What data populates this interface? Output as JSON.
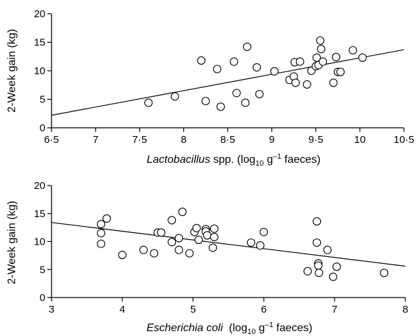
{
  "chart_data": [
    {
      "type": "scatter",
      "id": "top",
      "xlabel_italic": "Lactobacillus",
      "xlabel_mid": " spp. (log",
      "xlabel_sub": "10",
      "xlabel_end": " g",
      "xlabel_sup": "–1",
      "xlabel_tail": " faeces)",
      "ylabel": "2-Week gain (kg)",
      "xlim": [
        6.5,
        10.5
      ],
      "ylim": [
        0,
        20
      ],
      "xticks": [
        6.5,
        7,
        7.5,
        8,
        8.5,
        9,
        9.5,
        10,
        10.5
      ],
      "xtick_labels": [
        "6·5",
        "7",
        "7·5",
        "8",
        "8·5",
        "9",
        "9·5",
        "10",
        "10·5"
      ],
      "yticks": [
        0,
        5,
        10,
        15,
        20
      ],
      "ytick_labels": [
        "0",
        "5",
        "10",
        "15",
        "20"
      ],
      "points": [
        {
          "x": 7.6,
          "y": 4.4
        },
        {
          "x": 7.9,
          "y": 5.5
        },
        {
          "x": 8.2,
          "y": 11.8
        },
        {
          "x": 8.25,
          "y": 4.7
        },
        {
          "x": 8.38,
          "y": 10.3
        },
        {
          "x": 8.42,
          "y": 3.7
        },
        {
          "x": 8.57,
          "y": 11.6
        },
        {
          "x": 8.6,
          "y": 6.1
        },
        {
          "x": 8.7,
          "y": 4.4
        },
        {
          "x": 8.72,
          "y": 14.2
        },
        {
          "x": 8.83,
          "y": 10.6
        },
        {
          "x": 8.86,
          "y": 5.9
        },
        {
          "x": 9.03,
          "y": 9.9
        },
        {
          "x": 9.2,
          "y": 8.4
        },
        {
          "x": 9.25,
          "y": 9.0
        },
        {
          "x": 9.26,
          "y": 11.5
        },
        {
          "x": 9.27,
          "y": 7.9
        },
        {
          "x": 9.32,
          "y": 11.6
        },
        {
          "x": 9.4,
          "y": 7.6
        },
        {
          "x": 9.45,
          "y": 10.0
        },
        {
          "x": 9.5,
          "y": 10.8
        },
        {
          "x": 9.51,
          "y": 12.3
        },
        {
          "x": 9.53,
          "y": 11.0
        },
        {
          "x": 9.55,
          "y": 15.3
        },
        {
          "x": 9.56,
          "y": 13.8
        },
        {
          "x": 9.58,
          "y": 11.6
        },
        {
          "x": 9.7,
          "y": 7.9
        },
        {
          "x": 9.73,
          "y": 12.4
        },
        {
          "x": 9.75,
          "y": 9.8
        },
        {
          "x": 9.78,
          "y": 9.8
        },
        {
          "x": 9.92,
          "y": 13.6
        },
        {
          "x": 10.03,
          "y": 12.3
        }
      ],
      "fit_line": {
        "x": [
          6.5,
          10.5
        ],
        "y": [
          2.2,
          13.7
        ]
      }
    },
    {
      "type": "scatter",
      "id": "bottom",
      "xlabel_italic": "Escherichia coli",
      "xlabel_mid": "  (log",
      "xlabel_sub": "10",
      "xlabel_end": " g",
      "xlabel_sup": "–1",
      "xlabel_tail": " faeces)",
      "ylabel": "2-Week gain (kg)",
      "xlim": [
        3,
        8
      ],
      "ylim": [
        0,
        20
      ],
      "xticks": [
        3,
        4,
        5,
        6,
        7,
        8
      ],
      "xtick_labels": [
        "3",
        "4",
        "5",
        "6",
        "7",
        "8"
      ],
      "yticks": [
        0,
        5,
        10,
        15,
        20
      ],
      "ytick_labels": [
        "0",
        "5",
        "10",
        "15",
        "20"
      ],
      "points": [
        {
          "x": 3.7,
          "y": 13.1
        },
        {
          "x": 3.7,
          "y": 11.5
        },
        {
          "x": 3.7,
          "y": 9.6
        },
        {
          "x": 3.78,
          "y": 14.1
        },
        {
          "x": 4.0,
          "y": 7.6
        },
        {
          "x": 4.3,
          "y": 8.5
        },
        {
          "x": 4.45,
          "y": 7.9
        },
        {
          "x": 4.5,
          "y": 11.6
        },
        {
          "x": 4.55,
          "y": 11.6
        },
        {
          "x": 4.7,
          "y": 13.8
        },
        {
          "x": 4.7,
          "y": 9.9
        },
        {
          "x": 4.8,
          "y": 10.6
        },
        {
          "x": 4.8,
          "y": 8.5
        },
        {
          "x": 4.85,
          "y": 15.3
        },
        {
          "x": 4.95,
          "y": 7.9
        },
        {
          "x": 5.02,
          "y": 11.7
        },
        {
          "x": 5.05,
          "y": 12.4
        },
        {
          "x": 5.08,
          "y": 10.3
        },
        {
          "x": 5.18,
          "y": 12.2
        },
        {
          "x": 5.18,
          "y": 11.8
        },
        {
          "x": 5.2,
          "y": 11.1
        },
        {
          "x": 5.28,
          "y": 8.9
        },
        {
          "x": 5.3,
          "y": 12.3
        },
        {
          "x": 5.3,
          "y": 10.8
        },
        {
          "x": 5.82,
          "y": 9.8
        },
        {
          "x": 5.95,
          "y": 9.3
        },
        {
          "x": 6.0,
          "y": 11.7
        },
        {
          "x": 6.62,
          "y": 4.7
        },
        {
          "x": 6.75,
          "y": 13.6
        },
        {
          "x": 6.75,
          "y": 9.8
        },
        {
          "x": 6.77,
          "y": 6.1
        },
        {
          "x": 6.77,
          "y": 5.7
        },
        {
          "x": 6.78,
          "y": 4.4
        },
        {
          "x": 6.9,
          "y": 8.5
        },
        {
          "x": 6.98,
          "y": 3.7
        },
        {
          "x": 7.03,
          "y": 5.5
        },
        {
          "x": 7.7,
          "y": 4.4
        }
      ],
      "fit_line": {
        "x": [
          3,
          8
        ],
        "y": [
          13.4,
          5.6
        ]
      }
    }
  ]
}
